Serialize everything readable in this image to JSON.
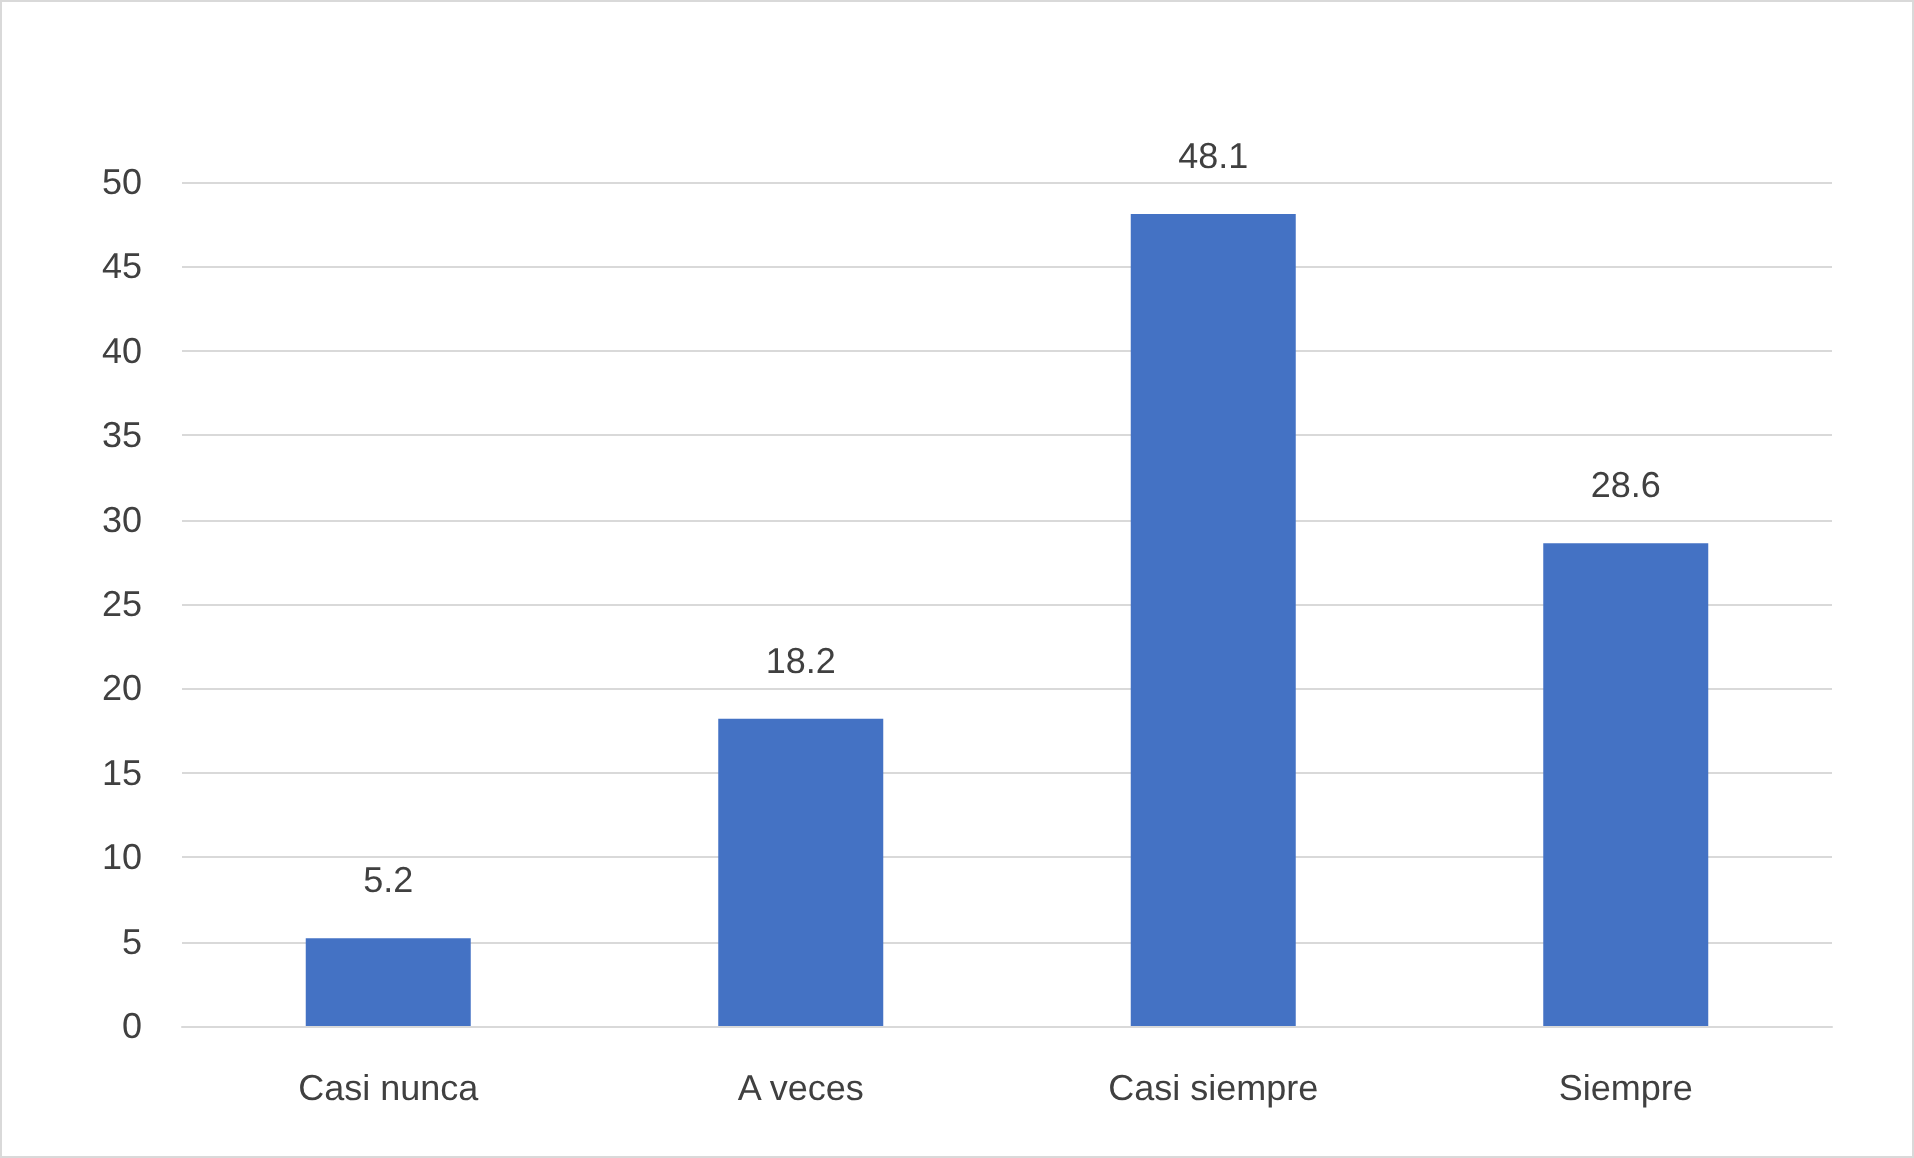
{
  "chart_data": {
    "type": "bar",
    "categories": [
      "Casi nunca",
      "A veces",
      "Casi siempre",
      "Siempre"
    ],
    "values": [
      5.2,
      18.2,
      48.1,
      28.6
    ],
    "color": "#4472c4",
    "ylim": [
      0,
      50
    ],
    "yticks": [
      0,
      5,
      10,
      15,
      20,
      25,
      30,
      35,
      40,
      45,
      50
    ],
    "grid": "y",
    "data_labels": true
  }
}
